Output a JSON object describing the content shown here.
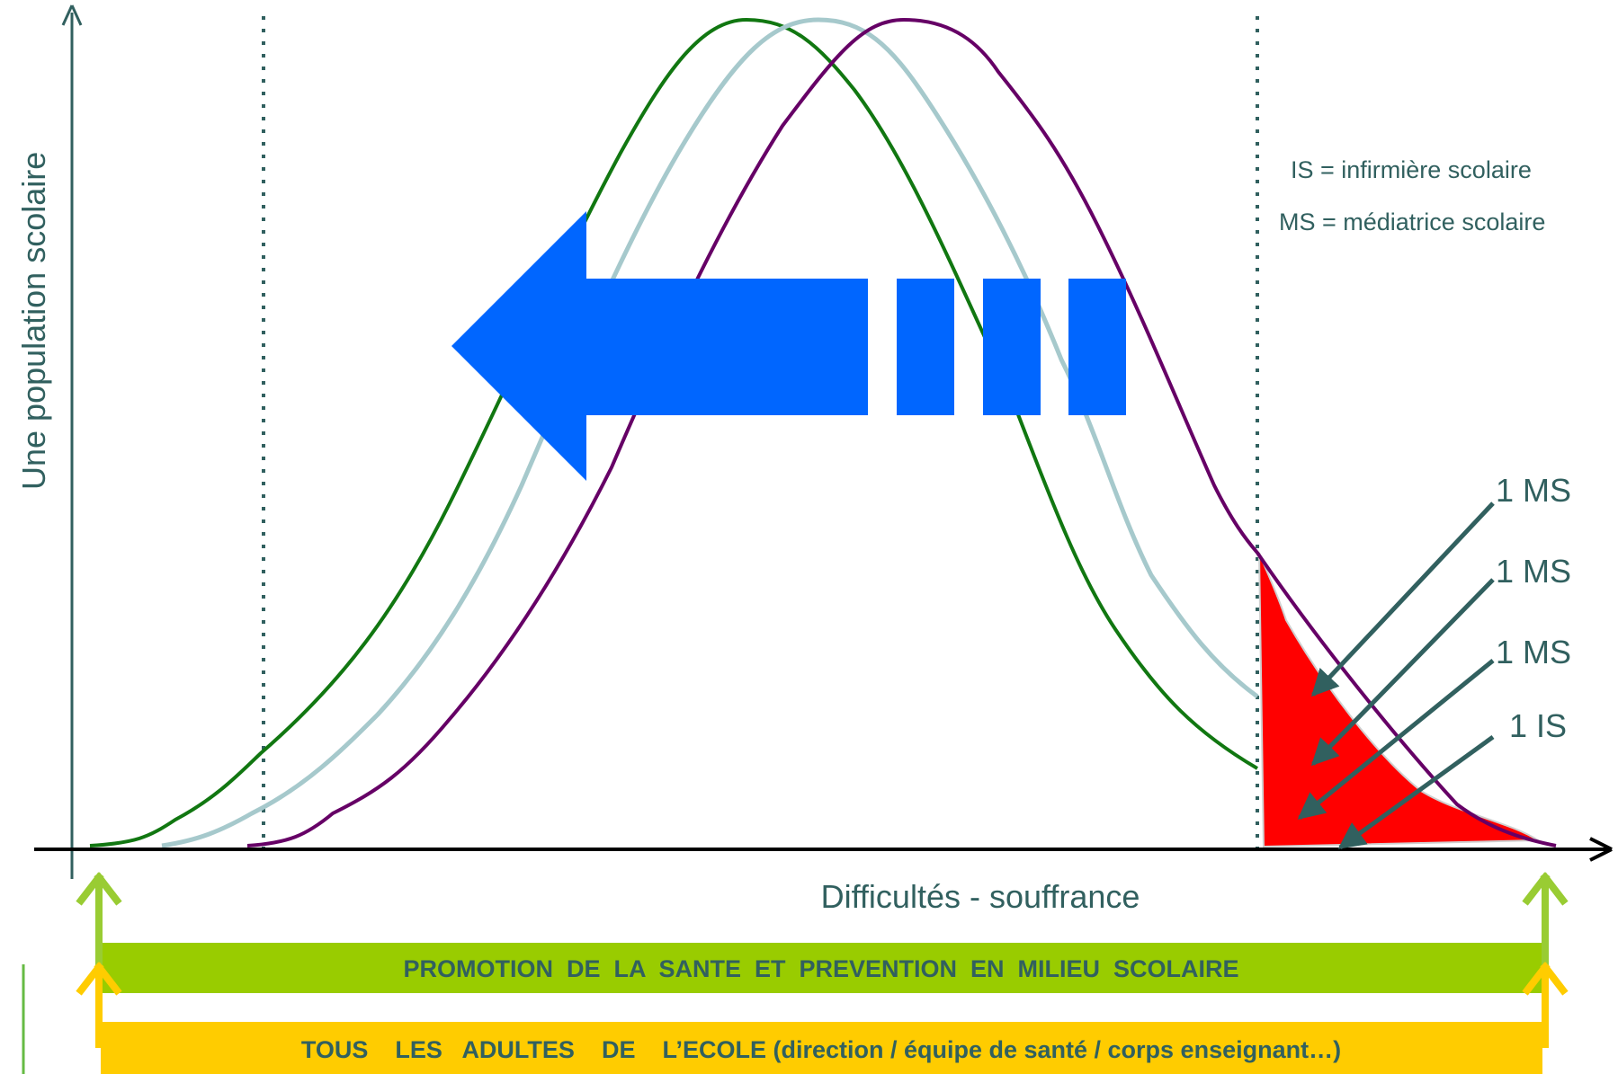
{
  "axes": {
    "y_label": "Une population scolaire",
    "x_label": "Difficultés - souffrance"
  },
  "legend": {
    "is_definition": "IS = infirmière scolaire",
    "ms_definition": "MS = médiatrice scolaire"
  },
  "pointers": [
    {
      "label": "1 MS"
    },
    {
      "label": "1 MS"
    },
    {
      "label": "1 MS"
    },
    {
      "label": "1 IS"
    }
  ],
  "bands": {
    "promotion": {
      "label": "PROMOTION  DE  LA  SANTE  ET  PREVENTION  EN  MILIEU  SCOLAIRE",
      "color": "#99cc00"
    },
    "adults": {
      "label": "TOUS    LES   ADULTES    DE    L’ECOLE (direction / équipe de santé / corps enseignant…)",
      "color": "#ffcc00"
    }
  },
  "colors": {
    "axis": "#31605f",
    "curve_left": "#117711",
    "curve_middle": "#a6c9cc",
    "curve_right": "#660066",
    "big_arrow": "#0066ff",
    "red_zone": "#ff0000",
    "up_arrow_green": "#99cc33",
    "up_arrow_yellow": "#ffcc00",
    "band_text": "#31605f"
  }
}
